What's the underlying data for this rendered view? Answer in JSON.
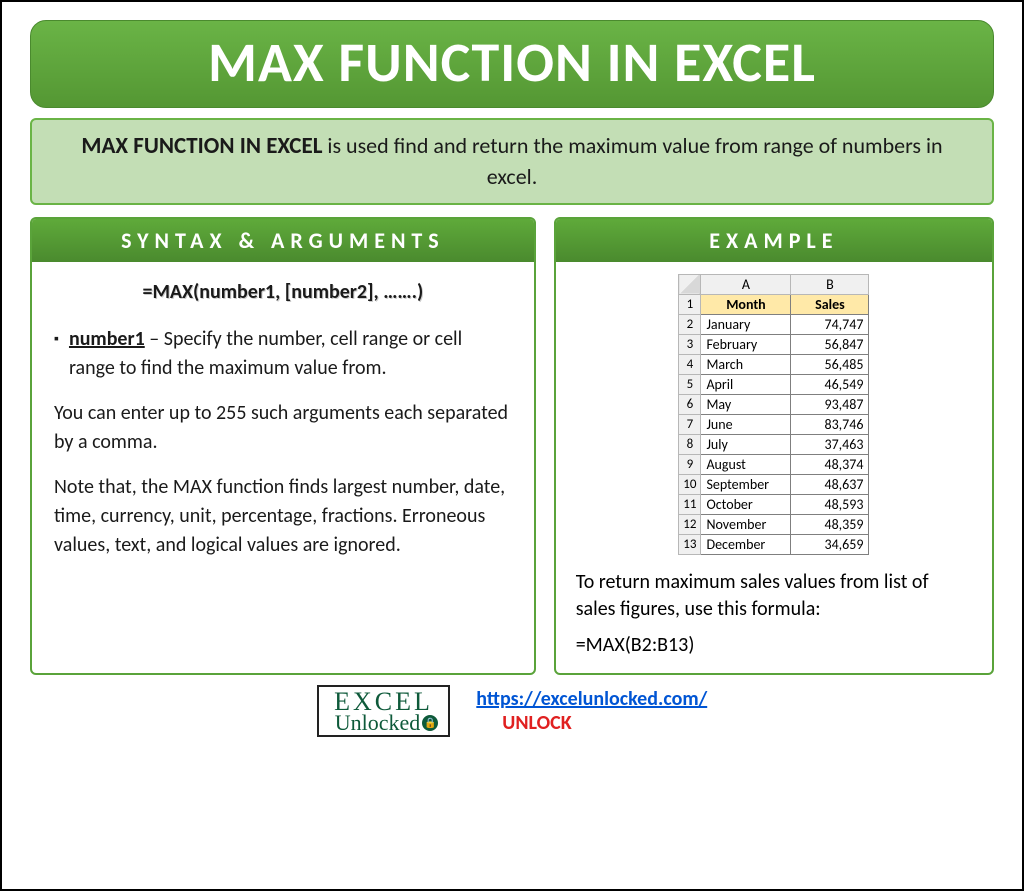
{
  "colors": {
    "green_dark": "#549733",
    "green_light": "#6ab446",
    "green_pale": "#c3deb5",
    "header_cell": "#ffe9a8",
    "link": "#0055d4",
    "red": "#e02020",
    "logo_green": "#0e5a3a"
  },
  "title": "MAX FUNCTION IN EXCEL",
  "description": {
    "bold": "MAX FUNCTION IN EXCEL",
    "rest": " is used find and return the maximum value from range of numbers in excel."
  },
  "syntax_panel": {
    "heading": "SYNTAX & ARGUMENTS",
    "formula": "=MAX(number1, [number2], …….)",
    "arg_name": "number1",
    "arg_desc": " – Specify the number, cell range or cell range to find the maximum value from.",
    "para1": "You can enter up to 255 such arguments each separated by a comma.",
    "para2": "Note that, the MAX function finds largest number, date, time, currency, unit, percentage, fractions. Erroneous values, text, and logical values are ignored."
  },
  "example_panel": {
    "heading": "EXAMPLE",
    "table": {
      "col_letters": [
        "A",
        "B"
      ],
      "headers": [
        "Month",
        "Sales"
      ],
      "rows": [
        [
          "January",
          "74,747"
        ],
        [
          "February",
          "56,847"
        ],
        [
          "March",
          "56,485"
        ],
        [
          "April",
          "46,549"
        ],
        [
          "May",
          "93,487"
        ],
        [
          "June",
          "83,746"
        ],
        [
          "July",
          "37,463"
        ],
        [
          "August",
          "48,374"
        ],
        [
          "September",
          "48,637"
        ],
        [
          "October",
          "48,593"
        ],
        [
          "November",
          "48,359"
        ],
        [
          "December",
          "34,659"
        ]
      ]
    },
    "caption": "To return maximum sales values from list of sales figures, use this formula:",
    "formula": "=MAX(B2:B13)"
  },
  "footer": {
    "logo_line1": "EXCEL",
    "logo_line2": "Unlocked",
    "url": "https://excelunlocked.com/",
    "unlock": "UNLOCK"
  }
}
